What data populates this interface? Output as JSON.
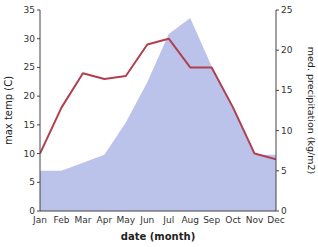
{
  "chart_data": {
    "type": "line",
    "categories": [
      "Jan",
      "Feb",
      "Mar",
      "Apr",
      "May",
      "Jun",
      "Jul",
      "Aug",
      "Sep",
      "Oct",
      "Nov",
      "Dec"
    ],
    "xlabel": "date (month)",
    "ylabel": "max temp (C)",
    "y2label": "med. precipitation (kg/m2)",
    "series": [
      {
        "type": "area",
        "axis": "y2",
        "color": "#b0b8e8",
        "values": [
          5,
          5,
          6,
          7,
          11,
          16,
          22,
          24,
          18,
          13,
          7,
          7
        ]
      },
      {
        "type": "line",
        "color": "#b04050",
        "values": [
          10,
          18,
          24,
          23,
          23.5,
          29,
          30,
          25,
          25,
          18,
          10,
          9
        ]
      }
    ],
    "ylim": [
      0,
      35
    ],
    "yticks": [
      0,
      5,
      10,
      15,
      20,
      25,
      30,
      35
    ],
    "y2lim": [
      0,
      25
    ],
    "y2ticks": [
      0,
      5,
      10,
      15,
      20,
      25
    ],
    "grid": false
  }
}
